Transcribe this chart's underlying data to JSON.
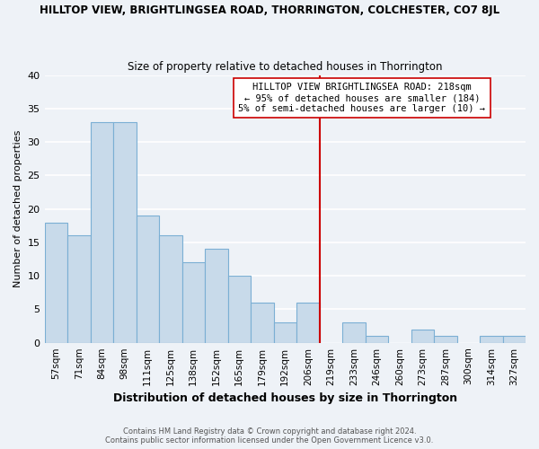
{
  "title": "HILLTOP VIEW, BRIGHTLINGSEA ROAD, THORRINGTON, COLCHESTER, CO7 8JL",
  "subtitle": "Size of property relative to detached houses in Thorrington",
  "xlabel": "Distribution of detached houses by size in Thorrington",
  "ylabel": "Number of detached properties",
  "bar_labels": [
    "57sqm",
    "71sqm",
    "84sqm",
    "98sqm",
    "111sqm",
    "125sqm",
    "138sqm",
    "152sqm",
    "165sqm",
    "179sqm",
    "192sqm",
    "206sqm",
    "219sqm",
    "233sqm",
    "246sqm",
    "260sqm",
    "273sqm",
    "287sqm",
    "300sqm",
    "314sqm",
    "327sqm"
  ],
  "bar_heights": [
    18,
    16,
    33,
    33,
    19,
    16,
    12,
    14,
    10,
    6,
    3,
    6,
    0,
    3,
    1,
    0,
    2,
    1,
    0,
    1,
    1
  ],
  "bar_color": "#c8daea",
  "bar_edge_color": "#7bafd4",
  "vline_color": "#cc0000",
  "annotation_title": "HILLTOP VIEW BRIGHTLINGSEA ROAD: 218sqm",
  "annotation_line1": "← 95% of detached houses are smaller (184)",
  "annotation_line2": "5% of semi-detached houses are larger (10) →",
  "ylim": [
    0,
    40
  ],
  "yticks": [
    0,
    5,
    10,
    15,
    20,
    25,
    30,
    35,
    40
  ],
  "footer1": "Contains HM Land Registry data © Crown copyright and database right 2024.",
  "footer2": "Contains public sector information licensed under the Open Government Licence v3.0.",
  "background_color": "#eef2f7",
  "plot_bg_color": "#eef2f7",
  "grid_color": "#ffffff",
  "annotation_box_edgecolor": "#cc0000"
}
